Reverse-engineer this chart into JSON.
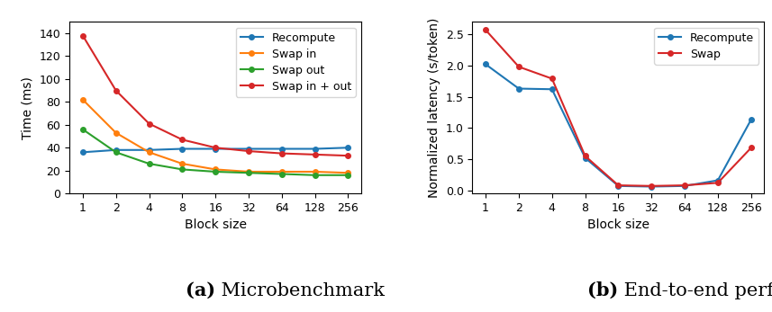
{
  "block_sizes": [
    1,
    2,
    4,
    8,
    16,
    32,
    64,
    128,
    256
  ],
  "left": {
    "recompute": [
      36,
      38,
      38,
      39,
      39,
      39,
      39,
      39,
      40
    ],
    "swap_in": [
      82,
      53,
      36,
      26,
      21,
      19,
      19,
      19,
      18
    ],
    "swap_out": [
      56,
      36,
      26,
      21,
      19,
      18,
      17,
      16,
      16
    ],
    "swap_inout": [
      138,
      90,
      61,
      47,
      40,
      37,
      35,
      34,
      33
    ],
    "ylabel": "Time (ms)",
    "xlabel": "Block size",
    "ylim": [
      0,
      150
    ],
    "yticks": [
      0,
      20,
      40,
      60,
      80,
      100,
      120,
      140
    ],
    "colors": {
      "recompute": "#1f77b4",
      "swap_in": "#ff7f0e",
      "swap_out": "#2ca02c",
      "swap_inout": "#d62728"
    },
    "legend_labels": [
      "Recompute",
      "Swap in",
      "Swap out",
      "Swap in + out"
    ],
    "caption_bold": "(a)",
    "caption_normal": " Microbenchmark"
  },
  "right": {
    "recompute": [
      2.02,
      1.63,
      1.62,
      0.52,
      0.07,
      0.06,
      0.07,
      0.16,
      1.13
    ],
    "swap": [
      2.57,
      1.98,
      1.79,
      0.55,
      0.08,
      0.07,
      0.08,
      0.12,
      0.68
    ],
    "ylabel": "Normalized latency (s/token)",
    "xlabel": "Block size",
    "ylim": [
      -0.05,
      2.7
    ],
    "yticks": [
      0.0,
      0.5,
      1.0,
      1.5,
      2.0,
      2.5
    ],
    "colors": {
      "recompute": "#1f77b4",
      "swap": "#d62728"
    },
    "legend_labels": [
      "Recompute",
      "Swap"
    ],
    "caption_bold": "(b)",
    "caption_normal": " End-to-end performance"
  },
  "background_color": "#ffffff",
  "caption_fontsize": 15,
  "caption_font": "DejaVu Serif"
}
